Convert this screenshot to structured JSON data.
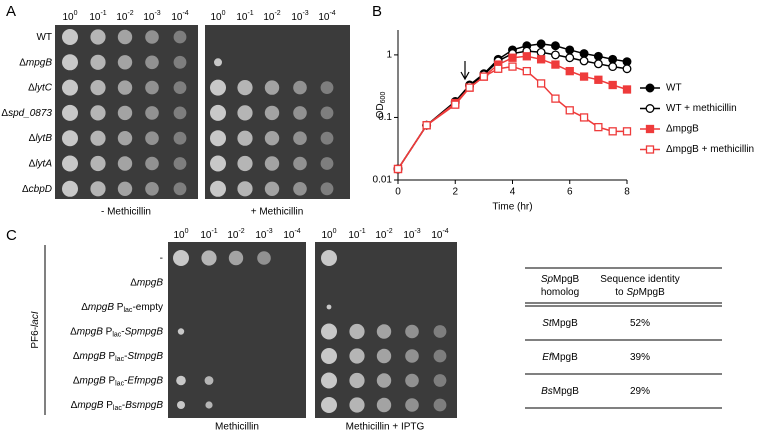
{
  "chart_data": {
    "type": "line",
    "panel_label": "B",
    "x_label": "Time (hr)",
    "y_label": "OD",
    "y_label_sub": "600",
    "x": [
      0,
      1,
      2,
      2.5,
      3,
      3.5,
      4,
      4.5,
      5,
      5.5,
      6,
      6.5,
      7,
      7.5,
      8
    ],
    "xlim": [
      0,
      8
    ],
    "xticks": [
      0,
      2,
      4,
      6,
      8
    ],
    "ylim": [
      0.01,
      2.5
    ],
    "yticks": [
      0.01,
      0.1,
      1
    ],
    "y_log": true,
    "legend": "right",
    "series": [
      {
        "name": "WT",
        "color": "#000000",
        "marker": "circle",
        "filled": true,
        "values": [
          0.015,
          0.075,
          0.18,
          0.33,
          0.5,
          0.85,
          1.2,
          1.4,
          1.5,
          1.4,
          1.2,
          1.05,
          0.95,
          0.85,
          0.78
        ]
      },
      {
        "name": "WT + methicillin",
        "color": "#000000",
        "marker": "circle",
        "filled": false,
        "values": [
          0.015,
          0.075,
          0.17,
          0.32,
          0.48,
          0.8,
          1.05,
          1.15,
          1.1,
          1.0,
          0.9,
          0.8,
          0.72,
          0.65,
          0.6
        ]
      },
      {
        "name": "ΔmpgB",
        "color": "#ee3b3b",
        "marker": "square",
        "filled": true,
        "values": [
          0.015,
          0.075,
          0.17,
          0.3,
          0.45,
          0.7,
          0.9,
          0.95,
          0.85,
          0.7,
          0.55,
          0.45,
          0.4,
          0.33,
          0.28
        ]
      },
      {
        "name": "ΔmpgB + methicillin",
        "color": "#ee3b3b",
        "marker": "square",
        "filled": false,
        "values": [
          0.015,
          0.075,
          0.16,
          0.3,
          0.45,
          0.6,
          0.65,
          0.55,
          0.35,
          0.2,
          0.13,
          0.1,
          0.07,
          0.06,
          0.06
        ]
      }
    ]
  },
  "panel_a": {
    "label": "A",
    "dilutions": [
      {
        "base": "10",
        "exp": "0"
      },
      {
        "base": "10",
        "exp": "-1"
      },
      {
        "base": "10",
        "exp": "-2"
      },
      {
        "base": "10",
        "exp": "-3"
      },
      {
        "base": "10",
        "exp": "-4"
      }
    ],
    "strains": [
      [
        {
          "text": "WT"
        }
      ],
      [
        {
          "text": "Δ"
        },
        {
          "text": "mpgB",
          "italic": true
        }
      ],
      [
        {
          "text": "Δ"
        },
        {
          "text": "lytC",
          "italic": true
        }
      ],
      [
        {
          "text": "Δ"
        },
        {
          "text": "spd_0873",
          "italic": true
        }
      ],
      [
        {
          "text": "Δ"
        },
        {
          "text": "lytB",
          "italic": true
        }
      ],
      [
        {
          "text": "Δ"
        },
        {
          "text": "lytA",
          "italic": true
        }
      ],
      [
        {
          "text": "Δ"
        },
        {
          "text": "cbpD",
          "italic": true
        }
      ]
    ],
    "conditions": [
      "- Methicillin",
      "+ Methicillin"
    ]
  },
  "panel_c": {
    "label": "C",
    "side_label": [
      {
        "text": "PF6-"
      },
      {
        "text": "lacI",
        "italic": true
      }
    ],
    "strains": [
      [
        {
          "text": "-"
        }
      ],
      [
        {
          "text": "Δ"
        },
        {
          "text": "mpgB",
          "italic": true
        }
      ],
      [
        {
          "text": "Δ"
        },
        {
          "text": "mpgB",
          "italic": true
        },
        {
          "text": " P"
        },
        {
          "text": "lac",
          "sub": true
        },
        {
          "text": "-empty"
        }
      ],
      [
        {
          "text": "Δ"
        },
        {
          "text": "mpgB",
          "italic": true
        },
        {
          "text": " P"
        },
        {
          "text": "lac",
          "sub": true
        },
        {
          "text": "-"
        },
        {
          "text": "SpmpgB",
          "italic": true
        }
      ],
      [
        {
          "text": "Δ"
        },
        {
          "text": "mpgB",
          "italic": true
        },
        {
          "text": " P"
        },
        {
          "text": "lac",
          "sub": true
        },
        {
          "text": "-"
        },
        {
          "text": "StmpgB",
          "italic": true
        }
      ],
      [
        {
          "text": "Δ"
        },
        {
          "text": "mpgB",
          "italic": true
        },
        {
          "text": " P"
        },
        {
          "text": "lac",
          "sub": true
        },
        {
          "text": "-"
        },
        {
          "text": "EfmpgB",
          "italic": true
        }
      ],
      [
        {
          "text": "Δ"
        },
        {
          "text": "mpgB",
          "italic": true
        },
        {
          "text": " P"
        },
        {
          "text": "lac",
          "sub": true
        },
        {
          "text": "-"
        },
        {
          "text": "BsmpgB",
          "italic": true
        }
      ]
    ],
    "conditions": [
      "Methicillin",
      "Methicillin + IPTG"
    ]
  },
  "table": {
    "header": [
      [
        [
          {
            "text": "Sp",
            "italic": true
          },
          {
            "text": "MpgB"
          }
        ],
        [
          {
            "text": "homolog"
          }
        ]
      ],
      [
        [
          {
            "text": "Sequence identity"
          }
        ],
        [
          {
            "text": "to "
          },
          {
            "text": "Sp",
            "italic": true
          },
          {
            "text": "MpgB"
          }
        ]
      ]
    ],
    "rows": [
      [
        [
          {
            "text": "St",
            "italic": true
          },
          {
            "text": "MpgB"
          }
        ],
        [
          {
            "text": "52%"
          }
        ]
      ],
      [
        [
          {
            "text": "Ef",
            "italic": true
          },
          {
            "text": "MpgB"
          }
        ],
        [
          {
            "text": "39%"
          }
        ]
      ],
      [
        [
          {
            "text": "Bs",
            "italic": true
          },
          {
            "text": "MpgB"
          }
        ],
        [
          {
            "text": "29%"
          }
        ]
      ]
    ]
  }
}
